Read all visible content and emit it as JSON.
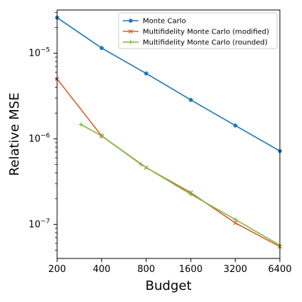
{
  "chart_data": {
    "type": "line",
    "xscale": "log",
    "yscale": "log",
    "xlabel": "Budget",
    "ylabel": "Relative MSE",
    "xlim": [
      200,
      6400
    ],
    "ylim": [
      4e-08,
      3.2e-05
    ],
    "xticks": [
      {
        "value": 200,
        "label": "200"
      },
      {
        "value": 400,
        "label": "400"
      },
      {
        "value": 800,
        "label": "800"
      },
      {
        "value": 1600,
        "label": "1600"
      },
      {
        "value": 3200,
        "label": "3200"
      },
      {
        "value": 6400,
        "label": "6400"
      }
    ],
    "yticks": [
      {
        "value": 1e-05,
        "base": "10",
        "exp": "−5"
      },
      {
        "value": 1e-06,
        "base": "10",
        "exp": "−6"
      },
      {
        "value": 1e-07,
        "base": "10",
        "exp": "−7"
      }
    ],
    "grid": false,
    "legend_position": "top-right",
    "series": [
      {
        "name": "Monte Carlo",
        "color": "#1f77b4",
        "marker": "circle",
        "x": [
          200,
          400,
          800,
          1600,
          3200,
          6400
        ],
        "y": [
          2.6e-05,
          1.15e-05,
          5.8e-06,
          2.85e-06,
          1.43e-06,
          7.2e-07
        ]
      },
      {
        "name": "Multifidelity Monte Carlo (modified)",
        "color": "#d4612a",
        "marker": "x",
        "x": [
          200,
          400,
          800,
          1600,
          3200,
          6400
        ],
        "y": [
          5e-06,
          1.08e-06,
          4.6e-07,
          2.35e-07,
          1.04e-07,
          5.5e-08
        ]
      },
      {
        "name": "Multifidelity Monte Carlo (rounded)",
        "color": "#7fba42",
        "marker": "plus",
        "x": [
          290,
          400,
          740,
          1600,
          3200,
          6400
        ],
        "y": [
          1.47e-06,
          1.08e-06,
          5e-07,
          2.25e-07,
          1.14e-07,
          5.7e-08
        ]
      }
    ]
  }
}
